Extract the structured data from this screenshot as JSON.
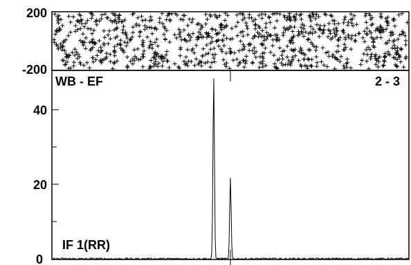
{
  "chart_data": [
    {
      "type": "scatter",
      "panel": "phase",
      "y_tick_labels": [
        "200",
        "-200"
      ],
      "ylim": [
        -200,
        200
      ],
      "grid": false,
      "points": [],
      "note_points": "random phase scatter rendered procedurally (noise)"
    },
    {
      "type": "line",
      "panel": "amplitude",
      "title_left": "WB - EF",
      "title_right": "2 - 3",
      "series_label": "IF 1(RR)",
      "y_tick_labels": [
        "40",
        "20",
        "0"
      ],
      "ylim": [
        0,
        50
      ],
      "grid": false,
      "peaks": [
        {
          "x": 0.453,
          "y": 49
        },
        {
          "x": 0.5,
          "y": 21.5
        }
      ]
    }
  ]
}
